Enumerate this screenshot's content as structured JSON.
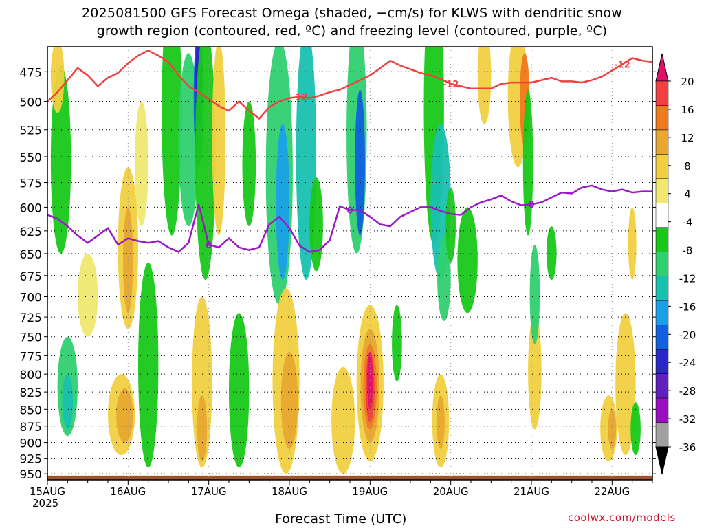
{
  "title": {
    "line1": "2025081500 GFS Forecast Omega (shaded, −cm/s) for KLWS with dendritic snow",
    "line2": "growth region (contoured, red, ºC) and freezing level (contoured, purple, ºC)"
  },
  "xlabel": "Forecast Time (UTC)",
  "year_label": "2025",
  "credit": "coolwx.com/models",
  "colors": {
    "red_contour": "#f04040",
    "purple_contour": "#9a18c8",
    "ground": "#a0522d"
  },
  "chart_data": {
    "type": "heatmap",
    "title": "2025081500 GFS Forecast Omega (shaded, −cm/s) for KLWS with dendritic snow growth region (contoured, red, ºC) and freezing level (contoured, purple, ºC)",
    "xlabel": "Forecast Time (UTC)",
    "ylabel": "",
    "x_ticks": [
      "15AUG",
      "16AUG",
      "17AUG",
      "18AUG",
      "19AUG",
      "20AUG",
      "21AUG",
      "22AUG"
    ],
    "x_range_hours": [
      0,
      180
    ],
    "y_ticks": [
      475,
      500,
      525,
      550,
      575,
      600,
      625,
      650,
      675,
      700,
      725,
      750,
      775,
      800,
      825,
      850,
      875,
      900,
      925,
      950
    ],
    "y_range_hPa": [
      455,
      960
    ],
    "grid": true,
    "colorbar": {
      "labels": [
        20,
        16,
        12,
        8,
        4,
        -4,
        -8,
        -12,
        -16,
        -20,
        -24,
        -28,
        -32,
        -36
      ],
      "colors": [
        "#e0106a",
        "#f04040",
        "#f07a20",
        "#e8a830",
        "#f0d040",
        "#f0e870",
        "#ffffff",
        "#18c818",
        "#30d070",
        "#18c0b0",
        "#1aa0e8",
        "#1060e0",
        "#2828c8",
        "#6020c0",
        "#9a10c0",
        "#a0a0a0",
        "#000000"
      ]
    },
    "series": [
      {
        "name": "-12",
        "color": "#f04040",
        "x_hours": [
          0,
          3,
          6,
          9,
          12,
          15,
          18,
          21,
          24,
          27,
          30,
          33,
          36,
          39,
          42,
          45,
          48,
          51,
          54,
          57,
          60,
          63,
          66,
          69,
          72,
          75,
          78,
          81,
          84,
          87,
          90,
          93,
          96,
          99,
          102,
          105,
          108,
          111,
          114,
          117,
          120,
          123,
          126,
          129,
          132,
          135,
          138,
          141,
          144,
          147,
          150,
          153,
          156,
          159,
          162,
          165,
          168,
          171,
          174,
          177,
          180
        ],
        "pressure_hPa": [
          500,
          492,
          482,
          472,
          478,
          487,
          480,
          476,
          468,
          462,
          458,
          462,
          467,
          478,
          487,
          492,
          498,
          504,
          508,
          500,
          508,
          515,
          505,
          500,
          497,
          496,
          497,
          495,
          492,
          490,
          486,
          482,
          478,
          472,
          466,
          470,
          473,
          476,
          478,
          481,
          485,
          487,
          489,
          489,
          489,
          485,
          484,
          484,
          484,
          482,
          480,
          483,
          483,
          484,
          482,
          479,
          474,
          469,
          464,
          466,
          467
        ]
      },
      {
        "name": "0",
        "color": "#9a18c8",
        "x_hours": [
          0,
          3,
          6,
          9,
          12,
          15,
          18,
          21,
          24,
          27,
          30,
          33,
          36,
          39,
          42,
          45,
          48,
          51,
          54,
          57,
          60,
          63,
          66,
          69,
          72,
          75,
          78,
          81,
          84,
          87,
          90,
          93,
          96,
          99,
          102,
          105,
          108,
          111,
          114,
          117,
          120,
          123,
          126,
          129,
          132,
          135,
          138,
          141,
          144,
          147,
          150,
          153,
          156,
          159,
          162,
          165,
          168,
          171,
          174,
          177,
          180
        ],
        "pressure_hPa": [
          608,
          612,
          620,
          630,
          638,
          630,
          622,
          640,
          633,
          636,
          638,
          636,
          643,
          648,
          638,
          597,
          640,
          643,
          633,
          643,
          646,
          643,
          618,
          610,
          622,
          641,
          648,
          646,
          635,
          599,
          603,
          603,
          610,
          618,
          620,
          610,
          605,
          600,
          600,
          604,
          607,
          608,
          600,
          595,
          592,
          588,
          594,
          598,
          597,
          595,
          590,
          585,
          586,
          580,
          578,
          582,
          584,
          582,
          585,
          584,
          584
        ]
      }
    ],
    "ground_level_hPa": 953
  }
}
